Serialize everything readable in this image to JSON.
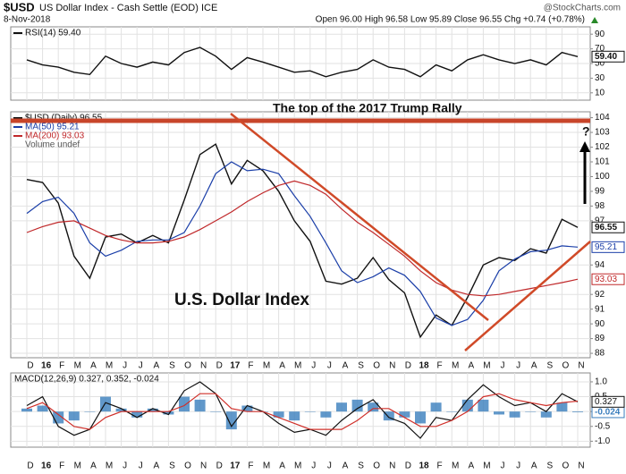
{
  "header": {
    "symbol": "$USD",
    "subtitle": "US Dollar Index - Cash Settle (EOD) ICE",
    "date": "8-Nov-2018",
    "quote": "Open 96.00 High 96.58 Low 95.89 Close 96.55 Chg +0.74 (+0.78%)",
    "brand": "@StockCharts.com"
  },
  "chart_data": [
    {
      "type": "line",
      "ylim": [
        0,
        100
      ],
      "yticks": [
        10,
        30,
        50,
        70,
        90
      ],
      "series": [
        {
          "name": "RSI(14) 59.40",
          "color": "#111111",
          "tag": "59.40",
          "values": [
            55,
            48,
            45,
            38,
            35,
            60,
            50,
            45,
            52,
            48,
            65,
            72,
            60,
            42,
            58,
            52,
            45,
            38,
            40,
            32,
            38,
            42,
            55,
            45,
            42,
            32,
            48,
            40,
            55,
            62,
            55,
            50,
            55,
            48,
            65,
            59.4
          ]
        }
      ]
    },
    {
      "type": "line",
      "categories": [
        "D",
        "16",
        "F",
        "M",
        "A",
        "M",
        "J",
        "J",
        "A",
        "S",
        "O",
        "N",
        "D",
        "17",
        "F",
        "M",
        "A",
        "M",
        "J",
        "J",
        "A",
        "S",
        "O",
        "N",
        "D",
        "18",
        "F",
        "M",
        "A",
        "M",
        "J",
        "J",
        "A",
        "S",
        "O",
        "N"
      ],
      "ylim": [
        87.7,
        104.4
      ],
      "yticks": [
        88,
        89,
        90,
        91,
        92,
        94,
        97,
        98,
        99,
        100,
        101,
        102,
        103,
        104
      ],
      "note": "Volume undef",
      "annotations": [
        "The top of the 2017 Trump Rally",
        "U.S. Dollar Index",
        "?"
      ],
      "series": [
        {
          "name": "$USD (Daily) 96.55",
          "color": "#111111",
          "tag": "96.55",
          "values": [
            99.8,
            99.6,
            98.2,
            94.6,
            93.1,
            95.9,
            96.1,
            95.5,
            96.0,
            95.5,
            98.4,
            101.5,
            102.2,
            99.5,
            101.1,
            100.4,
            99.0,
            97.0,
            95.6,
            92.9,
            92.7,
            93.1,
            94.5,
            93.0,
            92.1,
            89.1,
            90.6,
            89.9,
            91.8,
            94.0,
            94.5,
            94.3,
            95.1,
            94.8,
            97.1,
            96.55
          ]
        },
        {
          "name": "MA(50) 95.21",
          "color": "#1a3ea8",
          "tag": "95.21",
          "values": [
            97.5,
            98.3,
            98.6,
            97.5,
            95.5,
            94.6,
            95.0,
            95.6,
            95.7,
            95.7,
            96.2,
            98.0,
            100.2,
            101.0,
            100.4,
            100.5,
            100.2,
            98.7,
            97.3,
            95.5,
            93.6,
            92.8,
            93.2,
            93.8,
            93.3,
            92.2,
            90.4,
            89.9,
            90.3,
            91.6,
            93.6,
            94.4,
            94.9,
            95.0,
            95.3,
            95.21
          ]
        },
        {
          "name": "MA(200) 93.03",
          "color": "#c0282a",
          "tag": "93.03",
          "values": [
            96.2,
            96.6,
            96.9,
            97.0,
            96.5,
            96.0,
            95.7,
            95.5,
            95.5,
            95.6,
            95.9,
            96.4,
            97.0,
            97.6,
            98.3,
            98.9,
            99.4,
            99.7,
            99.4,
            98.8,
            97.8,
            96.9,
            96.2,
            95.4,
            94.6,
            93.6,
            92.8,
            92.3,
            92.0,
            91.9,
            92.0,
            92.2,
            92.4,
            92.6,
            92.8,
            93.03
          ]
        }
      ]
    },
    {
      "type": "line",
      "label": "MACD(12,26,9) 0.327, 0.352, -0.024",
      "ylim": [
        -1.2,
        1.3
      ],
      "yticks": [
        {
          "value": 1,
          "label": "1.0"
        },
        {
          "value": 0.5,
          "label": "0.5"
        },
        {
          "value": 0,
          "label": "0.0"
        },
        {
          "value": -0.5,
          "label": "-0.5"
        },
        {
          "value": -1,
          "label": "-1.0"
        }
      ],
      "series": [
        {
          "type": "bar",
          "color": "#3a7ebd",
          "tag": "-0.024",
          "values": [
            0.1,
            0.2,
            -0.4,
            -0.3,
            0.0,
            0.5,
            0.1,
            -0.2,
            0.1,
            -0.1,
            0.5,
            0.4,
            0.0,
            -0.6,
            0.2,
            0.0,
            -0.2,
            -0.3,
            0.0,
            -0.2,
            0.3,
            0.4,
            0.3,
            -0.3,
            -0.2,
            -0.4,
            0.3,
            0.0,
            0.4,
            0.4,
            -0.1,
            -0.2,
            0.0,
            -0.2,
            0.3,
            -0.024
          ]
        },
        {
          "color": "#111111",
          "tag": "0.327",
          "values": [
            0.2,
            0.5,
            -0.5,
            -0.8,
            -0.6,
            0.3,
            0.1,
            -0.2,
            0.1,
            -0.1,
            0.7,
            1.0,
            0.6,
            -0.5,
            0.2,
            0.0,
            -0.4,
            -0.7,
            -0.6,
            -0.8,
            -0.3,
            0.1,
            0.4,
            -0.2,
            -0.4,
            -0.9,
            -0.2,
            -0.3,
            0.4,
            0.9,
            0.5,
            0.2,
            0.3,
            0.0,
            0.6,
            0.327
          ]
        },
        {
          "color": "#d0302a",
          "values": [
            0.1,
            0.3,
            -0.1,
            -0.5,
            -0.6,
            -0.2,
            0.0,
            0.0,
            0.0,
            0.0,
            0.2,
            0.6,
            0.6,
            0.1,
            0.0,
            0.0,
            -0.2,
            -0.4,
            -0.6,
            -0.6,
            -0.6,
            -0.3,
            0.1,
            0.1,
            -0.2,
            -0.5,
            -0.5,
            -0.3,
            0.0,
            0.5,
            0.6,
            0.4,
            0.3,
            0.2,
            0.3,
            0.352
          ]
        }
      ]
    }
  ]
}
